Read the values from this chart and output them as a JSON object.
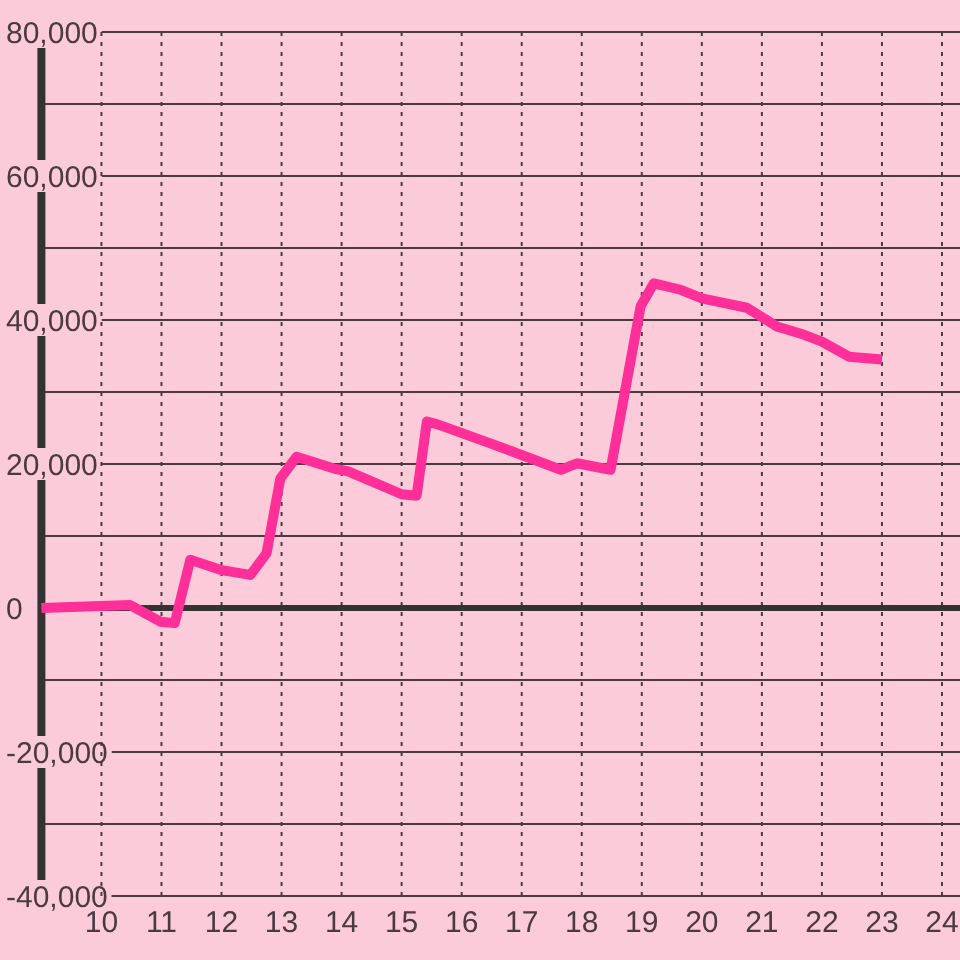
{
  "chart_data": {
    "type": "line",
    "x": [
      9,
      10.48,
      10.98,
      11.22,
      11.48,
      11.98,
      12.48,
      12.75,
      12.98,
      13.25,
      13.9,
      14.1,
      15,
      15.25,
      15.42,
      15.6,
      16.5,
      17.65,
      17.92,
      18.48,
      18.98,
      19.2,
      19.65,
      20,
      20.75,
      21.25,
      21.65,
      22,
      22.45,
      23
    ],
    "values": [
      0,
      400,
      -1900,
      -2100,
      6700,
      5300,
      4600,
      7600,
      18000,
      21000,
      19300,
      19000,
      15800,
      15600,
      25900,
      25500,
      22800,
      19200,
      20100,
      19200,
      41900,
      45100,
      44200,
      43000,
      41700,
      39100,
      38100,
      37000,
      34900,
      34500
    ],
    "color": "#fe2f98",
    "xlim": [
      9,
      24.3
    ],
    "xticks": [
      10,
      11,
      12,
      13,
      14,
      15,
      16,
      17,
      18,
      19,
      20,
      21,
      22,
      23,
      24
    ],
    "ylim": [
      -40000,
      80000
    ],
    "yticks": [
      {
        "value": -40000,
        "label": "-40,000"
      },
      {
        "value": -30000,
        "label": null
      },
      {
        "value": -20000,
        "label": "-20,000"
      },
      {
        "value": -10000,
        "label": null
      },
      0,
      {
        "value": 10000,
        "label": null
      },
      {
        "value": 20000,
        "label": "20,000"
      },
      {
        "value": 30000,
        "label": null
      },
      {
        "value": 40000,
        "label": "40,000"
      },
      {
        "value": 50000,
        "label": null
      },
      {
        "value": 60000,
        "label": "60,000"
      },
      {
        "value": 70000,
        "label": null
      },
      {
        "value": 80000,
        "label": "80,000"
      }
    ],
    "grid": true,
    "ref_lines": [
      {
        "axis": "y",
        "value": 0,
        "color": "#333333"
      }
    ]
  }
}
